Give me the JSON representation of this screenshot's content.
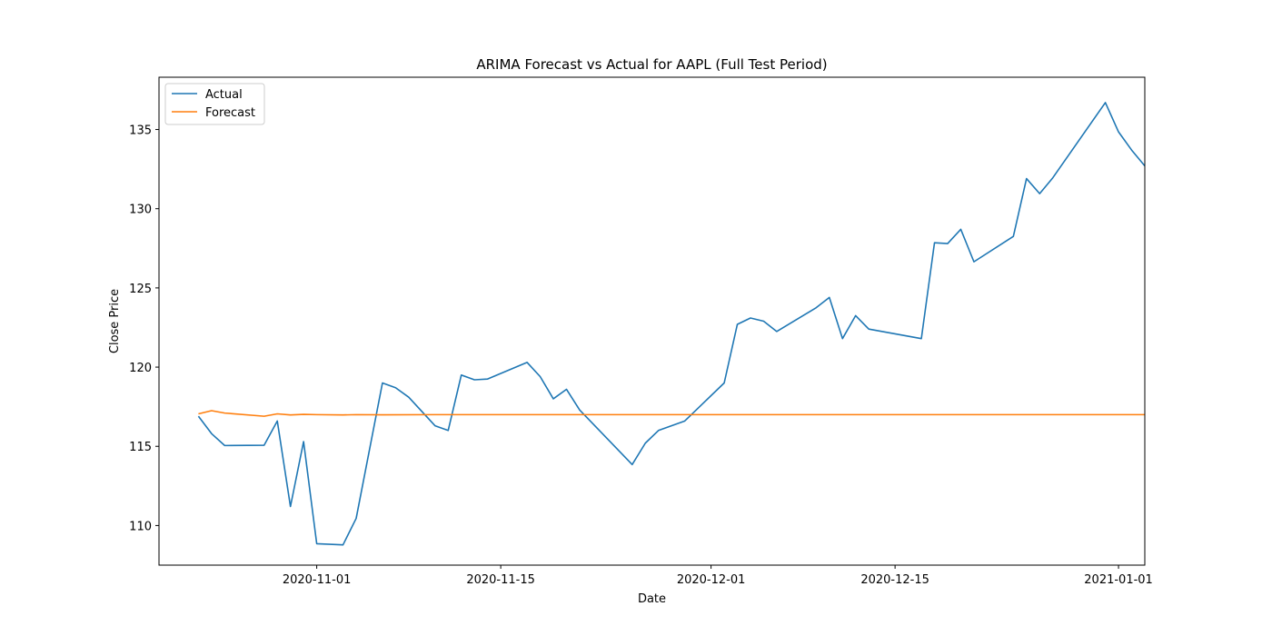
{
  "chart_data": {
    "type": "line",
    "title": "ARIMA Forecast vs Actual for AAPL (Full Test Period)",
    "xlabel": "Date",
    "ylabel": "Close Price",
    "xlim": [
      "2020-10-20",
      "2021-01-03"
    ],
    "ylim": [
      107.5,
      138.3
    ],
    "x_ticks": [
      "2020-11-01",
      "2020-11-15",
      "2020-12-01",
      "2020-12-15",
      "2021-01-01"
    ],
    "y_ticks": [
      110,
      115,
      120,
      125,
      130,
      135
    ],
    "grid": false,
    "legend_position": "top-left",
    "series": [
      {
        "name": "Actual",
        "color": "#1f77b4",
        "points": [
          [
            "2020-10-23",
            116.9
          ],
          [
            "2020-10-24",
            115.8
          ],
          [
            "2020-10-25",
            115.05
          ],
          [
            "2020-10-28",
            115.07
          ],
          [
            "2020-10-29",
            116.6
          ],
          [
            "2020-10-30",
            111.2
          ],
          [
            "2020-10-31",
            115.3
          ],
          [
            "2020-11-01",
            108.85
          ],
          [
            "2020-11-03",
            108.78
          ],
          [
            "2020-11-04",
            110.45
          ],
          [
            "2020-11-06",
            119.0
          ],
          [
            "2020-11-07",
            118.7
          ],
          [
            "2020-11-08",
            118.1
          ],
          [
            "2020-11-10",
            116.3
          ],
          [
            "2020-11-11",
            116.0
          ],
          [
            "2020-11-12",
            119.5
          ],
          [
            "2020-11-13",
            119.2
          ],
          [
            "2020-11-14",
            119.25
          ],
          [
            "2020-11-17",
            120.3
          ],
          [
            "2020-11-18",
            119.4
          ],
          [
            "2020-11-19",
            118.0
          ],
          [
            "2020-11-20",
            118.6
          ],
          [
            "2020-11-21",
            117.3
          ],
          [
            "2020-11-25",
            113.85
          ],
          [
            "2020-11-26",
            115.2
          ],
          [
            "2020-11-27",
            116.0
          ],
          [
            "2020-11-29",
            116.6
          ],
          [
            "2020-12-02",
            119.0
          ],
          [
            "2020-12-03",
            122.7
          ],
          [
            "2020-12-04",
            123.1
          ],
          [
            "2020-12-05",
            122.9
          ],
          [
            "2020-12-06",
            122.25
          ],
          [
            "2020-12-09",
            123.75
          ],
          [
            "2020-12-10",
            124.4
          ],
          [
            "2020-12-11",
            121.8
          ],
          [
            "2020-12-12",
            123.25
          ],
          [
            "2020-12-13",
            122.4
          ],
          [
            "2020-12-17",
            121.8
          ],
          [
            "2020-12-18",
            127.85
          ],
          [
            "2020-12-19",
            127.8
          ],
          [
            "2020-12-20",
            128.7
          ],
          [
            "2020-12-21",
            126.65
          ],
          [
            "2020-12-24",
            128.25
          ],
          [
            "2020-12-25",
            131.9
          ],
          [
            "2020-12-26",
            130.95
          ],
          [
            "2020-12-27",
            131.95
          ],
          [
            "2020-12-31",
            136.7
          ],
          [
            "2021-01-01",
            134.85
          ],
          [
            "2021-01-02",
            133.7
          ],
          [
            "2021-01-03",
            132.7
          ]
        ]
      },
      {
        "name": "Forecast",
        "color": "#ff7f0e",
        "points": [
          [
            "2020-10-23",
            117.05
          ],
          [
            "2020-10-24",
            117.25
          ],
          [
            "2020-10-25",
            117.1
          ],
          [
            "2020-10-28",
            116.9
          ],
          [
            "2020-10-29",
            117.05
          ],
          [
            "2020-10-30",
            116.98
          ],
          [
            "2020-10-31",
            117.02
          ],
          [
            "2020-11-01",
            117.0
          ],
          [
            "2020-11-03",
            116.98
          ],
          [
            "2020-11-04",
            117.0
          ],
          [
            "2020-11-06",
            116.99
          ],
          [
            "2020-11-10",
            117.0
          ],
          [
            "2020-11-20",
            117.0
          ],
          [
            "2020-12-01",
            117.0
          ],
          [
            "2020-12-15",
            117.0
          ],
          [
            "2021-01-03",
            117.0
          ]
        ]
      }
    ]
  }
}
